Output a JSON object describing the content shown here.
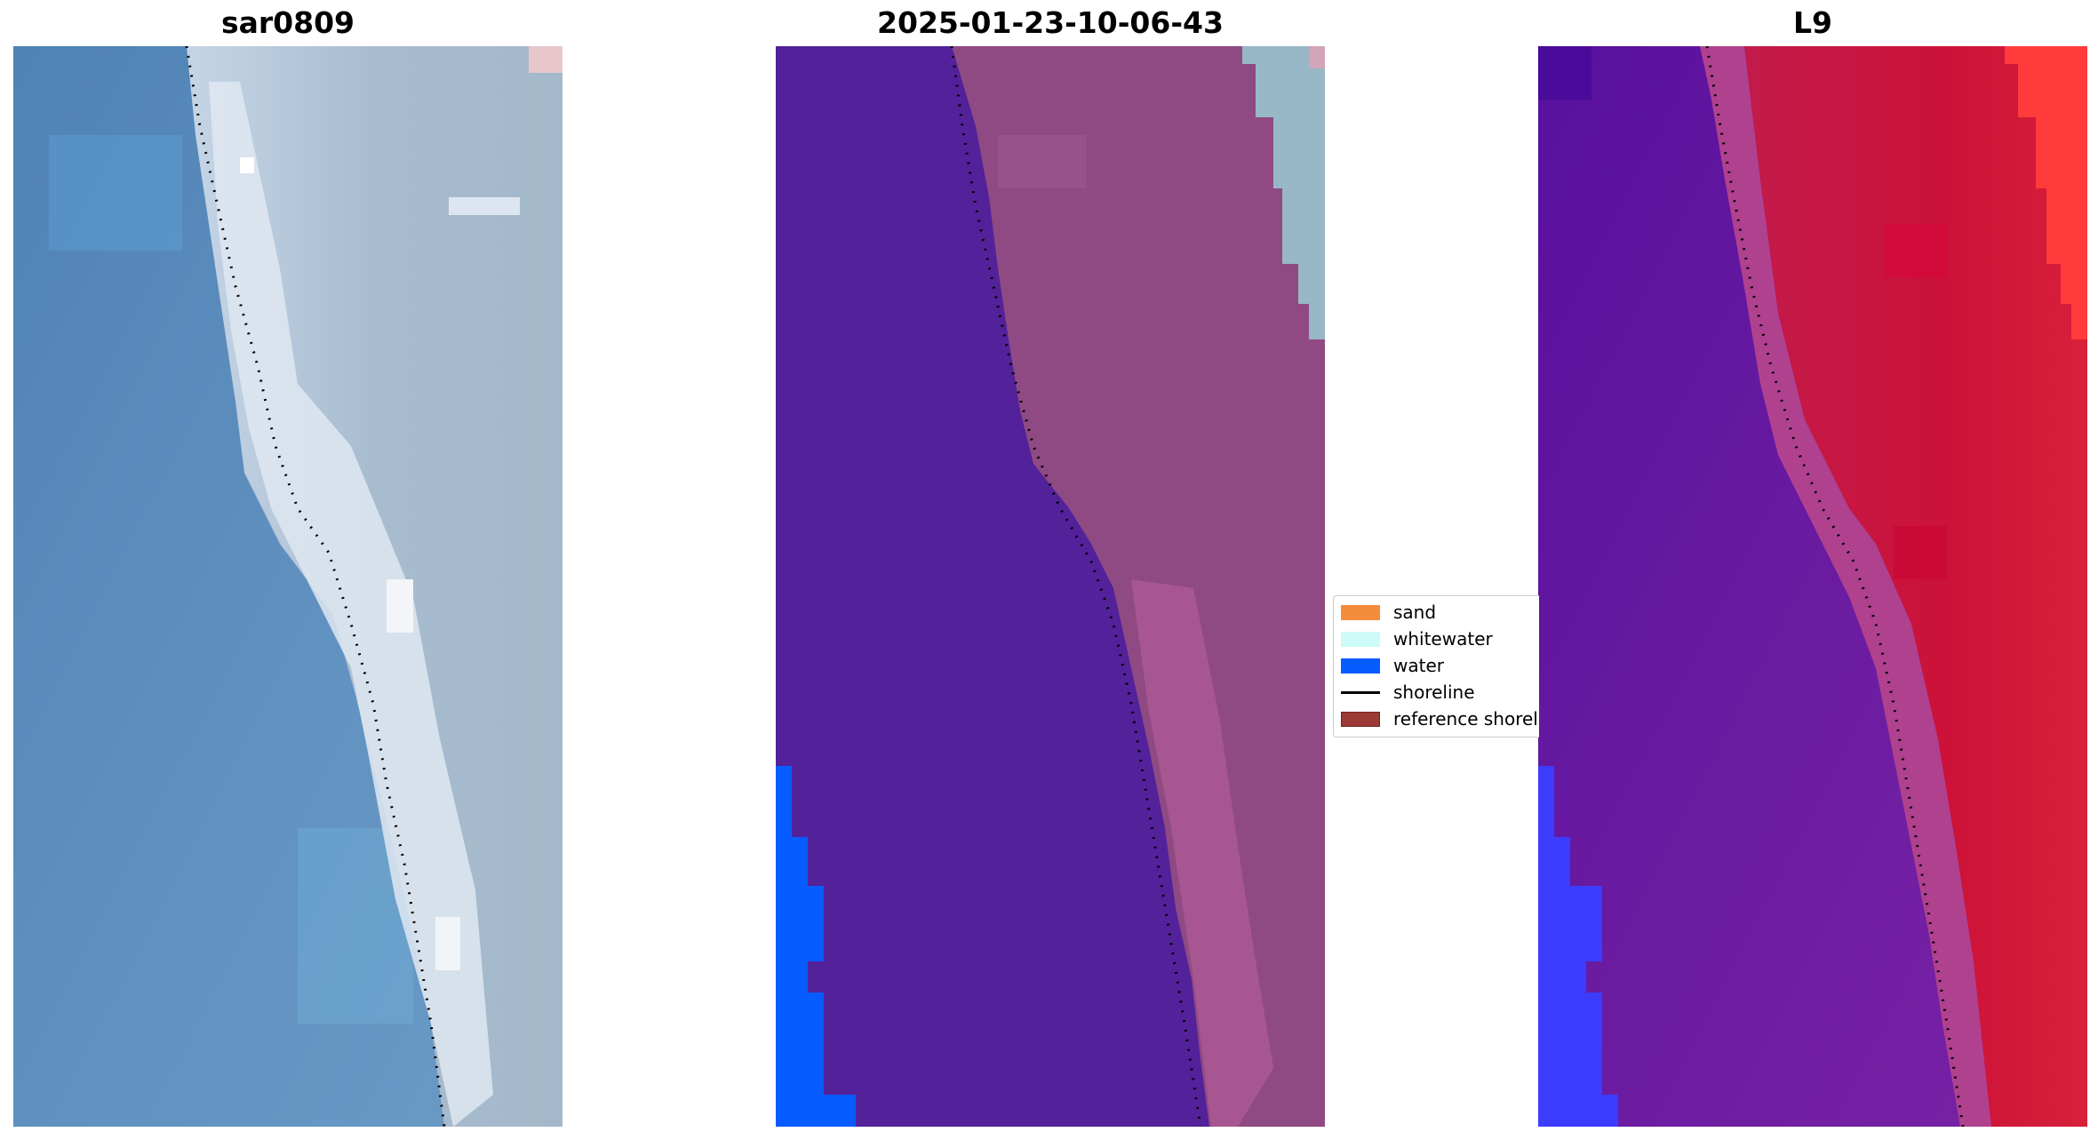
{
  "panels": [
    {
      "title": "sar0809"
    },
    {
      "title": "2025-01-23-10-06-43"
    },
    {
      "title": "L9"
    }
  ],
  "legend": {
    "items": [
      {
        "label": "sand",
        "color": "#f58c3c",
        "kind": "patch"
      },
      {
        "label": "whitewater",
        "color": "#cdfbf8",
        "kind": "patch"
      },
      {
        "label": "water",
        "color": "#065cff",
        "kind": "patch"
      },
      {
        "label": "shoreline",
        "color": "#000000",
        "kind": "line"
      },
      {
        "label": "reference shoreline",
        "color": "#9b3a34",
        "kind": "patch"
      }
    ]
  },
  "colors": {
    "ocean_rgb": "#5e8fbd",
    "ocean_rgb_light": "#6aa7cf",
    "beach_rgb": "#c7d6e6",
    "land_rgb": "#9db3c8",
    "other_class": "#53219a",
    "land_class": "#8f4a84",
    "land_class_highlight": "#b05b97",
    "land_class_grey": "#98b7c7",
    "water_class": "#065cff",
    "index_water": "#6a1fa0",
    "index_land": "#c8193e",
    "index_strong_land": "#ff2b2b",
    "index_blue": "#3c3cff"
  }
}
